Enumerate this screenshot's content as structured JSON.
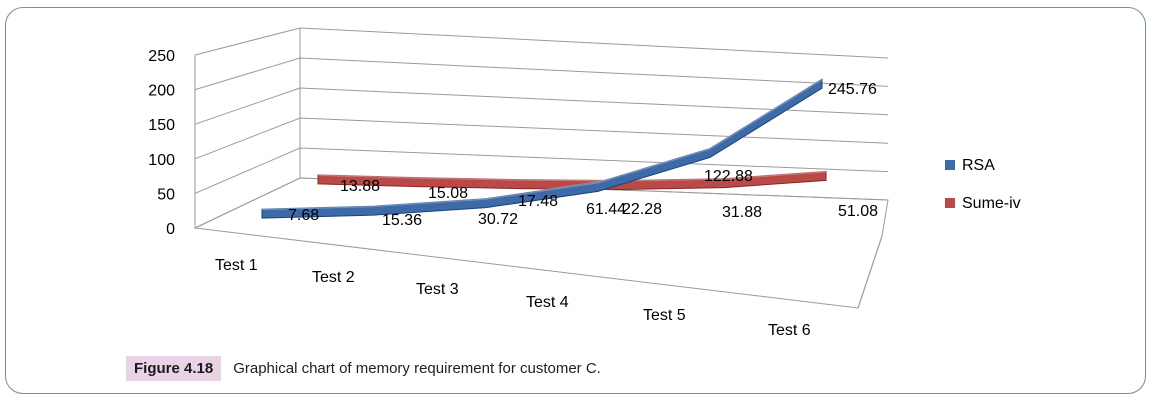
{
  "caption": {
    "figure_label": "Figure 4.18",
    "text": "Graphical chart of memory requirement for customer C."
  },
  "chart_data": {
    "type": "line",
    "style": "3d-ribbon",
    "categories": [
      "Test 1",
      "Test 2",
      "Test 3",
      "Test 4",
      "Test 5",
      "Test 6"
    ],
    "ylim": [
      0,
      250
    ],
    "yticks": [
      0,
      50,
      100,
      150,
      200,
      250
    ],
    "grid": true,
    "legend_position": "right",
    "series": [
      {
        "name": "RSA",
        "color": "#3e6aa8",
        "values": [
          7.68,
          15.36,
          30.72,
          61.44,
          122.88,
          245.76
        ],
        "labels": [
          "7.68",
          "15.36",
          "30.72",
          "61.44",
          "122.88",
          "245.76"
        ]
      },
      {
        "name": "Sume-iv",
        "color": "#b94a48",
        "values": [
          13.88,
          15.08,
          17.48,
          22.28,
          31.88,
          51.08
        ],
        "labels": [
          "13.88",
          "15.08",
          "17.48",
          "22.28",
          "31.88",
          "51.08"
        ]
      }
    ]
  }
}
